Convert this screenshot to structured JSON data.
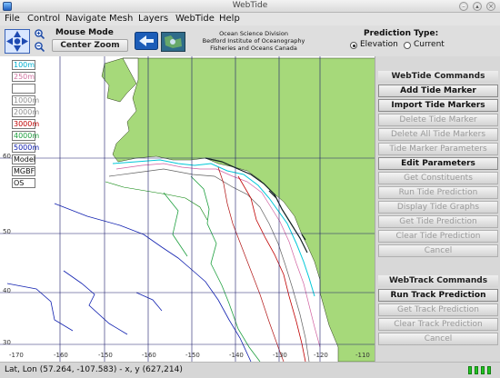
{
  "window": {
    "title": "WebTide"
  },
  "menu": [
    "File",
    "Control",
    "Navigate",
    "Mesh",
    "Layers",
    "WebTide",
    "Help"
  ],
  "toolbar": {
    "mouse_mode_label": "Mouse Mode",
    "center_zoom_label": "Center Zoom",
    "org_line1": "Ocean Science Division",
    "org_line2": "Bedford Institute of Oceanography",
    "org_line3": "Fisheries and Oceans Canada",
    "prediction_type_label": "Prediction Type:",
    "elevation_label": "Elevation",
    "current_label": "Current",
    "selected": "Elevation"
  },
  "legend": [
    "100m",
    "250m",
    "",
    "1000m",
    "2000m",
    "3000m",
    "4000m",
    "5000m",
    "Model",
    "MGBF",
    "OS"
  ],
  "map": {
    "lat_labels": [
      "60",
      "50",
      "40",
      "30"
    ],
    "lon_labels": [
      "-170",
      "-160",
      "-150",
      "-160",
      "-150",
      "-140",
      "-130",
      "-120",
      "-110"
    ]
  },
  "webtide": {
    "title": "WebTide Commands",
    "buttons": [
      {
        "label": "Add Tide Marker",
        "enabled": true
      },
      {
        "label": "Import Tide Markers",
        "enabled": true
      },
      {
        "label": "Delete Tide Marker",
        "enabled": false
      },
      {
        "label": "Delete All Tide Markers",
        "enabled": false
      },
      {
        "label": "Tide Marker Parameters",
        "enabled": false
      },
      {
        "label": "Edit Parameters",
        "enabled": true
      },
      {
        "label": "Get Constituents",
        "enabled": false
      },
      {
        "label": "Run Tide Prediction",
        "enabled": false
      },
      {
        "label": "Display Tide Graphs",
        "enabled": false
      },
      {
        "label": "Get Tide Prediction",
        "enabled": false
      },
      {
        "label": "Clear Tide Prediction",
        "enabled": false
      },
      {
        "label": "Cancel",
        "enabled": false
      }
    ]
  },
  "webtrack": {
    "title": "WebTrack Commands",
    "buttons": [
      {
        "label": "Run Track Prediction",
        "enabled": true
      },
      {
        "label": "Get Track Prediction",
        "enabled": false
      },
      {
        "label": "Clear Track Prediction",
        "enabled": false
      },
      {
        "label": "Cancel",
        "enabled": false
      }
    ]
  },
  "status": {
    "text": "Lat, Lon (57.264, -107.583) - x, y (627,214)"
  },
  "colors": {
    "land": "#a6d97a",
    "grid": "#1c1c6a"
  }
}
